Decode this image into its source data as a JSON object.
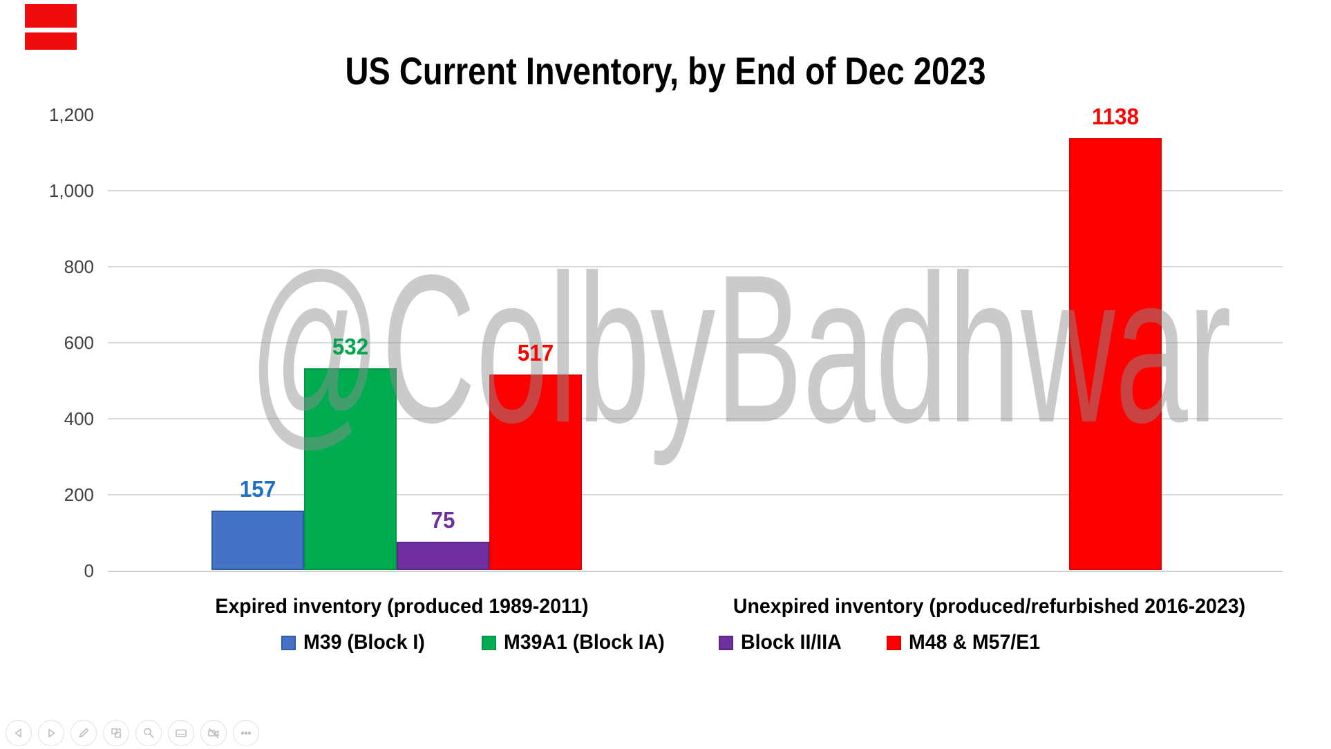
{
  "watermark": "@ColbyBadhwar",
  "decorations": {
    "red_annotation_color": "#ee0c0c"
  },
  "chart_data": {
    "type": "bar",
    "title": "US Current Inventory, by End of Dec 2023",
    "categories": [
      "Expired inventory (produced 1989-2011)",
      "Unexpired inventory (produced/refurbished 2016-2023)"
    ],
    "series": [
      {
        "name": "M39 (Block I)",
        "color": "#4472c4",
        "border": "#2a5caa",
        "label_color": "#1e70c3",
        "values": [
          157,
          null
        ]
      },
      {
        "name": "M39A1 (Block IA)",
        "color": "#00ac50",
        "border": "#009644",
        "label_color": "#00a44c",
        "values": [
          532,
          null
        ]
      },
      {
        "name": "Block II/IIA",
        "color": "#7030a0",
        "border": "#5c2585",
        "label_color": "#7030a0",
        "values": [
          75,
          null
        ]
      },
      {
        "name": "M48 & M57/E1",
        "color": "#ff0000",
        "border": "#e20000",
        "label_color": "#ff0000",
        "values": [
          517,
          1138
        ]
      }
    ],
    "y_ticks": [
      "0",
      "200",
      "400",
      "600",
      "800",
      "1,000",
      "1,200"
    ],
    "y_tick_values": [
      0,
      200,
      400,
      600,
      800,
      1000,
      1200
    ],
    "gridline_values": [
      200,
      400,
      600,
      800,
      1000
    ],
    "ylim": [
      0,
      1200
    ],
    "xlabel": "",
    "ylabel": "",
    "legend_position": "bottom",
    "grid_color": "#d8d8d8",
    "tick_color": "#404040"
  },
  "presenter_controls": {
    "icons": [
      "previous-slide",
      "next-slide",
      "pen",
      "see-all-slides",
      "zoom",
      "captions",
      "camera-off",
      "more-options"
    ]
  }
}
